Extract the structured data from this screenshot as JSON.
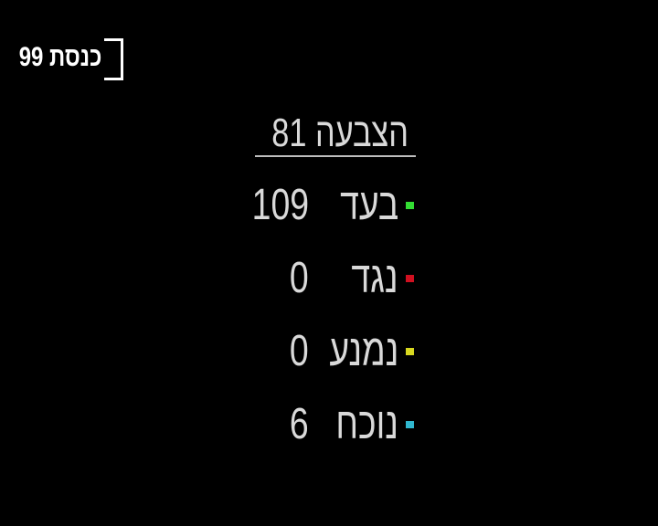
{
  "logo": {
    "text": "כנסת 99"
  },
  "vote": {
    "title": "הצבעה 81",
    "rows": [
      {
        "label": "בעד",
        "count": "109",
        "color": "#33dd33"
      },
      {
        "label": "נגד",
        "count": "0",
        "color": "#d01020"
      },
      {
        "label": "נמנע",
        "count": "0",
        "color": "#d8d820"
      },
      {
        "label": "נוכח",
        "count": "6",
        "color": "#30b8d0"
      }
    ]
  }
}
